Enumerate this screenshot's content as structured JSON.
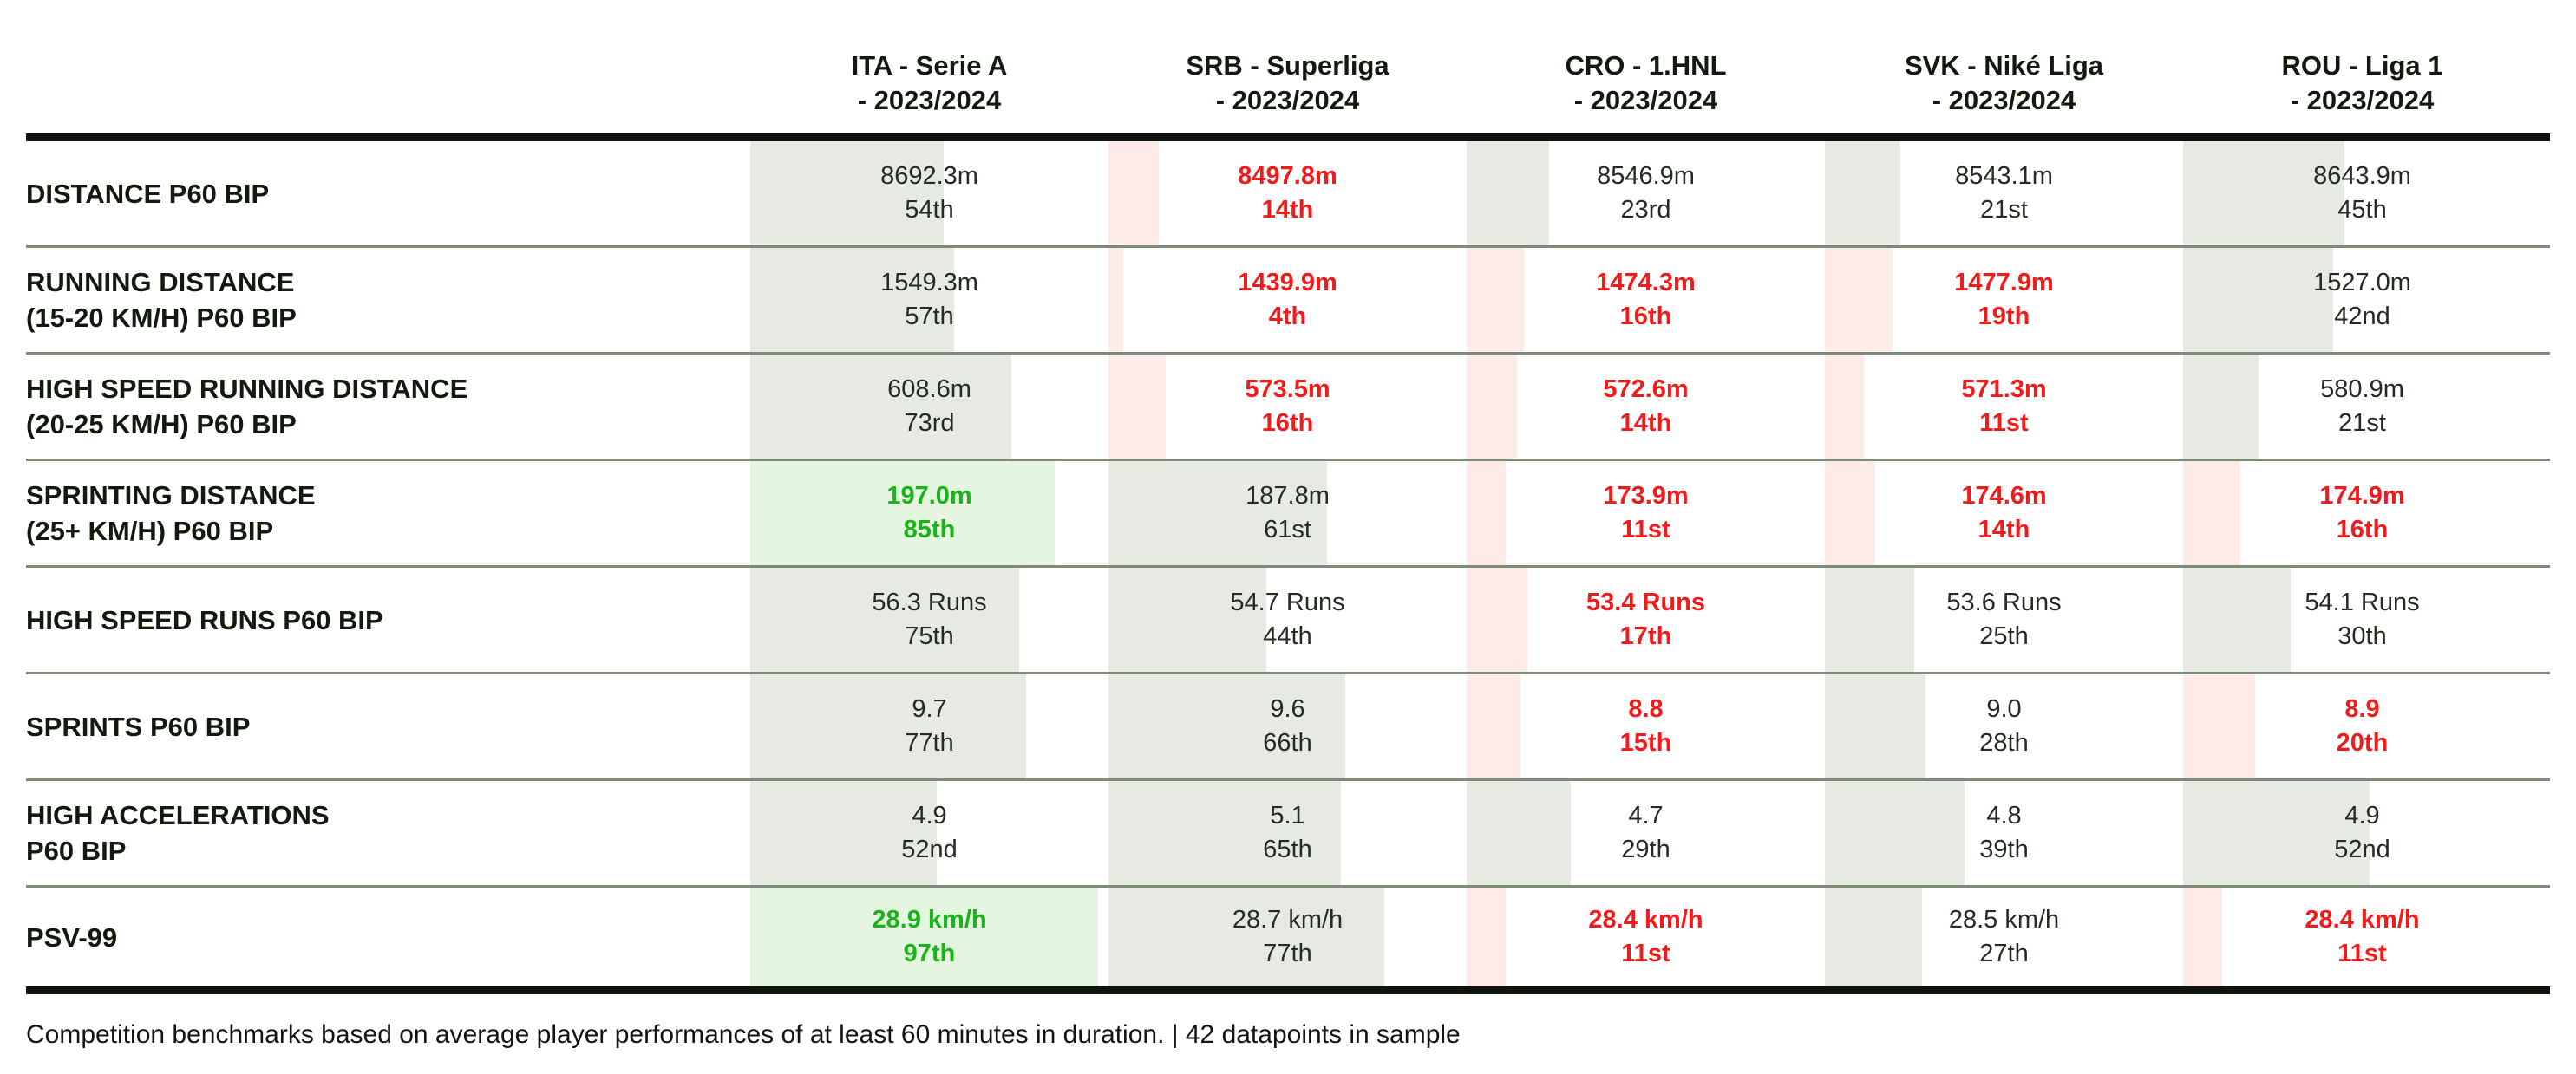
{
  "chart_data": {
    "type": "table",
    "description": "Competition physical benchmark table: metric value and percentile rank per league; bar width encodes percentile (red = low, grey = mid, green = high)",
    "leagues": [
      {
        "line1": "ITA - Serie A",
        "line2": "- 2023/2024"
      },
      {
        "line1": "SRB - Superliga",
        "line2": "- 2023/2024"
      },
      {
        "line1": "CRO - 1.HNL",
        "line2": "- 2023/2024"
      },
      {
        "line1": "SVK - Niké Liga",
        "line2": "- 2023/2024"
      },
      {
        "line1": "ROU - Liga 1",
        "line2": "- 2023/2024"
      }
    ],
    "rows": [
      {
        "label1": "DISTANCE P60 BIP",
        "label2": "",
        "cells": [
          {
            "value": "8692.3m",
            "rank": "54th",
            "percentile": 54,
            "status": "neutral"
          },
          {
            "value": "8497.8m",
            "rank": "14th",
            "percentile": 14,
            "status": "low"
          },
          {
            "value": "8546.9m",
            "rank": "23rd",
            "percentile": 23,
            "status": "neutral"
          },
          {
            "value": "8543.1m",
            "rank": "21st",
            "percentile": 21,
            "status": "neutral"
          },
          {
            "value": "8643.9m",
            "rank": "45th",
            "percentile": 45,
            "status": "neutral"
          }
        ]
      },
      {
        "label1": "RUNNING DISTANCE",
        "label2": "(15-20 KM/H) P60 BIP",
        "cells": [
          {
            "value": "1549.3m",
            "rank": "57th",
            "percentile": 57,
            "status": "neutral"
          },
          {
            "value": "1439.9m",
            "rank": "4th",
            "percentile": 4,
            "status": "low"
          },
          {
            "value": "1474.3m",
            "rank": "16th",
            "percentile": 16,
            "status": "low"
          },
          {
            "value": "1477.9m",
            "rank": "19th",
            "percentile": 19,
            "status": "low"
          },
          {
            "value": "1527.0m",
            "rank": "42nd",
            "percentile": 42,
            "status": "neutral"
          }
        ]
      },
      {
        "label1": "HIGH SPEED RUNNING DISTANCE",
        "label2": "(20-25 KM/H) P60 BIP",
        "cells": [
          {
            "value": "608.6m",
            "rank": "73rd",
            "percentile": 73,
            "status": "neutral"
          },
          {
            "value": "573.5m",
            "rank": "16th",
            "percentile": 16,
            "status": "low"
          },
          {
            "value": "572.6m",
            "rank": "14th",
            "percentile": 14,
            "status": "low"
          },
          {
            "value": "571.3m",
            "rank": "11st",
            "percentile": 11,
            "status": "low"
          },
          {
            "value": "580.9m",
            "rank": "21st",
            "percentile": 21,
            "status": "neutral"
          }
        ]
      },
      {
        "label1": "SPRINTING DISTANCE",
        "label2": "(25+ KM/H) P60 BIP",
        "cells": [
          {
            "value": "197.0m",
            "rank": "85th",
            "percentile": 85,
            "status": "high"
          },
          {
            "value": "187.8m",
            "rank": "61st",
            "percentile": 61,
            "status": "neutral"
          },
          {
            "value": "173.9m",
            "rank": "11st",
            "percentile": 11,
            "status": "low"
          },
          {
            "value": "174.6m",
            "rank": "14th",
            "percentile": 14,
            "status": "low"
          },
          {
            "value": "174.9m",
            "rank": "16th",
            "percentile": 16,
            "status": "low"
          }
        ]
      },
      {
        "label1": "HIGH SPEED RUNS P60 BIP",
        "label2": "",
        "cells": [
          {
            "value": "56.3 Runs",
            "rank": "75th",
            "percentile": 75,
            "status": "neutral"
          },
          {
            "value": "54.7 Runs",
            "rank": "44th",
            "percentile": 44,
            "status": "neutral"
          },
          {
            "value": "53.4 Runs",
            "rank": "17th",
            "percentile": 17,
            "status": "low"
          },
          {
            "value": "53.6 Runs",
            "rank": "25th",
            "percentile": 25,
            "status": "neutral"
          },
          {
            "value": "54.1 Runs",
            "rank": "30th",
            "percentile": 30,
            "status": "neutral"
          }
        ]
      },
      {
        "label1": "SPRINTS P60 BIP",
        "label2": "",
        "cells": [
          {
            "value": "9.7",
            "rank": "77th",
            "percentile": 77,
            "status": "neutral"
          },
          {
            "value": "9.6",
            "rank": "66th",
            "percentile": 66,
            "status": "neutral"
          },
          {
            "value": "8.8",
            "rank": "15th",
            "percentile": 15,
            "status": "low"
          },
          {
            "value": "9.0",
            "rank": "28th",
            "percentile": 28,
            "status": "neutral"
          },
          {
            "value": "8.9",
            "rank": "20th",
            "percentile": 20,
            "status": "low"
          }
        ]
      },
      {
        "label1": "HIGH ACCELERATIONS",
        "label2": "P60 BIP",
        "cells": [
          {
            "value": "4.9",
            "rank": "52nd",
            "percentile": 52,
            "status": "neutral"
          },
          {
            "value": "5.1",
            "rank": "65th",
            "percentile": 65,
            "status": "neutral"
          },
          {
            "value": "4.7",
            "rank": "29th",
            "percentile": 29,
            "status": "neutral"
          },
          {
            "value": "4.8",
            "rank": "39th",
            "percentile": 39,
            "status": "neutral"
          },
          {
            "value": "4.9",
            "rank": "52nd",
            "percentile": 52,
            "status": "neutral"
          }
        ]
      },
      {
        "label1": "PSV-99",
        "label2": "",
        "cells": [
          {
            "value": "28.9 km/h",
            "rank": "97th",
            "percentile": 97,
            "status": "high"
          },
          {
            "value": "28.7 km/h",
            "rank": "77th",
            "percentile": 77,
            "status": "neutral"
          },
          {
            "value": "28.4 km/h",
            "rank": "11st",
            "percentile": 11,
            "status": "low"
          },
          {
            "value": "28.5 km/h",
            "rank": "27th",
            "percentile": 27,
            "status": "neutral"
          },
          {
            "value": "28.4 km/h",
            "rank": "11st",
            "percentile": 11,
            "status": "low"
          }
        ]
      }
    ]
  },
  "footer": {
    "note": "Competition benchmarks based on average player performances of at least 60 minutes in duration. | 42 datapoints in sample"
  },
  "colors": {
    "positive_text": "#1ab31a",
    "negative_text": "#f01c1c",
    "neutral_text": "#232c21",
    "positive_bar": "#e4f6e0",
    "negative_bar": "#fcebe9",
    "neutral_bar": "#e7eae3",
    "heavy_rule": "#0f150e",
    "row_rule": "#7d8b78"
  }
}
